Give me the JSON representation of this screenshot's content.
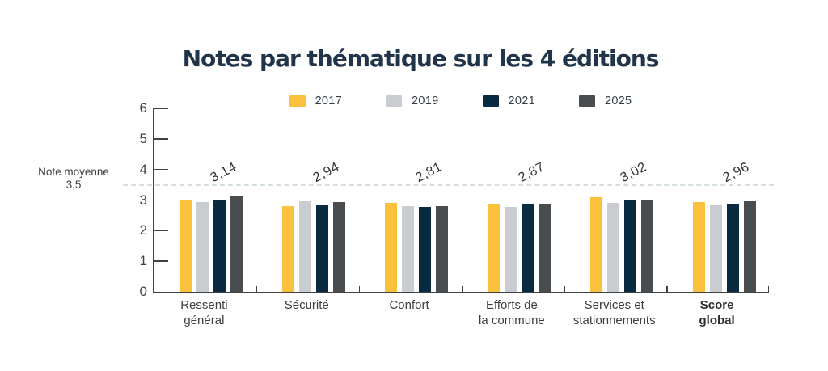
{
  "chart_data": {
    "type": "bar",
    "title": "Notes par thématique sur les 4 éditions",
    "categories": [
      {
        "label": "Ressenti\ngénéral",
        "bold": false
      },
      {
        "label": "Sécurité",
        "bold": false
      },
      {
        "label": "Confort",
        "bold": false
      },
      {
        "label": "Efforts de\nla commune",
        "bold": false
      },
      {
        "label": "Services et\nstationnements",
        "bold": false
      },
      {
        "label": "Score\nglobal",
        "bold": true
      }
    ],
    "series": [
      {
        "name": "2017",
        "color": "#FBC13C",
        "values": [
          3.0,
          2.79,
          2.92,
          2.88,
          3.08,
          2.93
        ]
      },
      {
        "name": "2019",
        "color": "#C9CDD1",
        "values": [
          2.93,
          2.97,
          2.79,
          2.78,
          2.91,
          2.82
        ]
      },
      {
        "name": "2021",
        "color": "#092A40",
        "values": [
          3.0,
          2.82,
          2.77,
          2.88,
          3.0,
          2.89
        ]
      },
      {
        "name": "2025",
        "color": "#4A4D50",
        "values": [
          3.14,
          2.94,
          2.81,
          2.87,
          3.02,
          2.96
        ]
      }
    ],
    "value_labels": [
      "3,14",
      "2,94",
      "2,81",
      "2,87",
      "3,02",
      "2,96"
    ],
    "value_labels_series": "2025",
    "reference_line": {
      "value": 3.5,
      "label": "Note moyenne\n3,5",
      "color": "#D3DCE1"
    },
    "ylim": [
      0,
      6
    ],
    "yticks": [
      "0",
      "1",
      "2",
      "3",
      "4",
      "5",
      "6"
    ],
    "legend_position": "top",
    "grid": false
  }
}
